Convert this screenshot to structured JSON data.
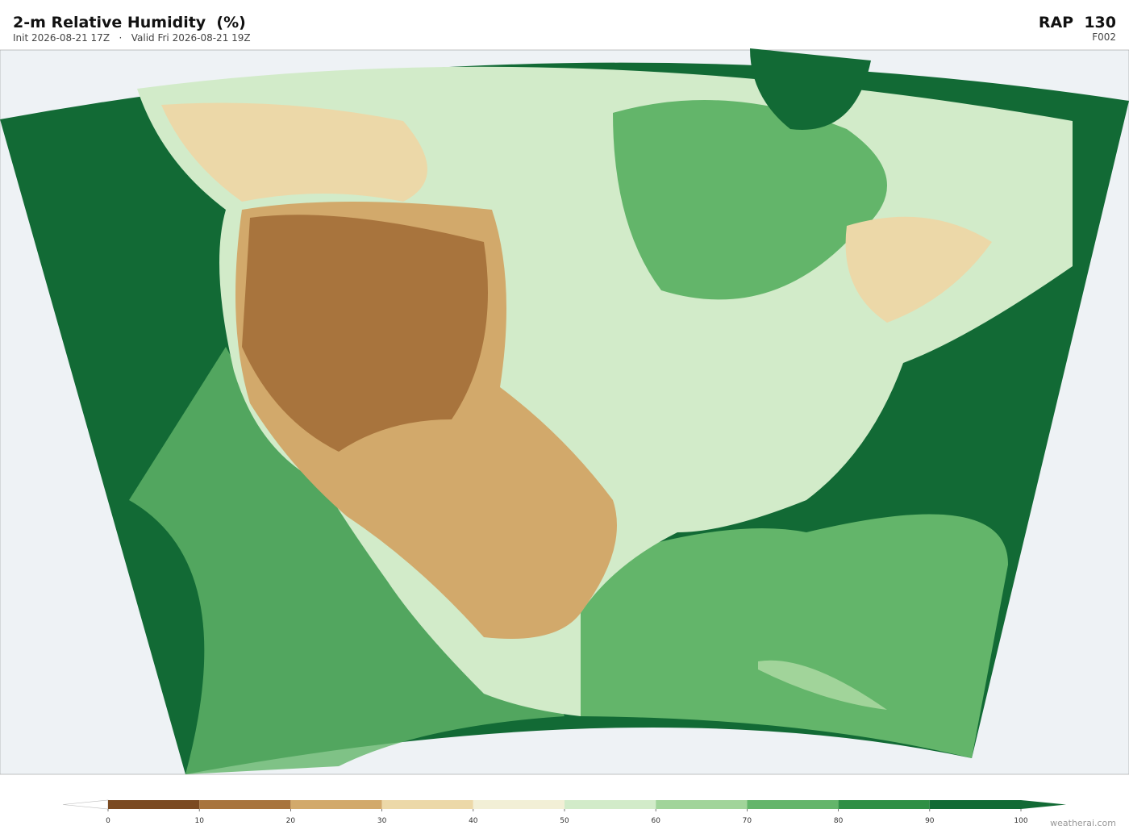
{
  "header": {
    "title": "2-m Relative Humidity  (%)",
    "subtitle": "Init 2026-08-21 17Z   ·   Valid Fri 2026-08-21 19Z",
    "model": "RAP  130",
    "forecast_hour": "F002"
  },
  "colorbar": {
    "ticks": [
      0,
      10,
      20,
      30,
      40,
      50,
      60,
      70,
      80,
      90,
      100
    ],
    "colors": [
      "#7b4a22",
      "#a8743d",
      "#d2a96b",
      "#ecd8a8",
      "#f2efd6",
      "#d2ebc9",
      "#a1d49a",
      "#63b56a",
      "#2f8f45",
      "#126a35"
    ],
    "under_color": "#ffffff",
    "over_color": "#126a35"
  },
  "credit": "weatherai.com"
}
